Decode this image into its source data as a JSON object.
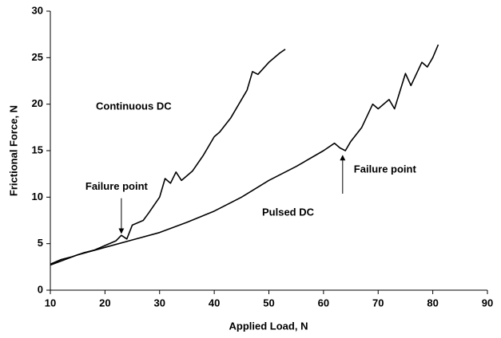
{
  "chart_data": {
    "type": "line",
    "xlabel": "Applied Load, N",
    "ylabel": "Frictional Force, N",
    "xlim": [
      10,
      90
    ],
    "xticks": [
      10,
      20,
      30,
      40,
      50,
      60,
      70,
      80,
      90
    ],
    "ylim": [
      0,
      30
    ],
    "yticks": [
      0,
      5,
      10,
      15,
      20,
      25,
      30
    ],
    "grid": false,
    "series": [
      {
        "name": "Continuous DC",
        "color": "#000000",
        "x": [
          10,
          12,
          14,
          16,
          18,
          20,
          22,
          23,
          24,
          25,
          27,
          28,
          30,
          31,
          32,
          33,
          34,
          36,
          38,
          40,
          41,
          43,
          45,
          46,
          47,
          48,
          50,
          52,
          53
        ],
        "values": [
          2.8,
          3.3,
          3.6,
          4.0,
          4.3,
          4.8,
          5.3,
          5.9,
          5.5,
          7.0,
          7.5,
          8.3,
          10,
          12,
          11.5,
          12.7,
          11.8,
          12.8,
          14.5,
          16.5,
          17,
          18.5,
          20.5,
          21.5,
          23.5,
          23.2,
          24.5,
          25.5,
          25.9
        ]
      },
      {
        "name": "Pulsed DC",
        "color": "#000000",
        "x": [
          10,
          15,
          20,
          25,
          30,
          35,
          40,
          45,
          50,
          55,
          60,
          62,
          63,
          64,
          65,
          67,
          69,
          70,
          72,
          73,
          75,
          76,
          78,
          79,
          80,
          81
        ],
        "values": [
          2.7,
          3.8,
          4.6,
          5.4,
          6.2,
          7.3,
          8.5,
          10.0,
          11.8,
          13.3,
          15.0,
          15.8,
          15.3,
          15.0,
          16.0,
          17.5,
          20.0,
          19.5,
          20.5,
          19.5,
          23.3,
          22.0,
          24.5,
          24.0,
          25,
          26.4
        ]
      }
    ],
    "annotations": [
      {
        "text": "Failure point",
        "x": 23,
        "y": 5.6
      },
      {
        "text": "Failure point",
        "x": 63.5,
        "y": 15
      }
    ]
  }
}
